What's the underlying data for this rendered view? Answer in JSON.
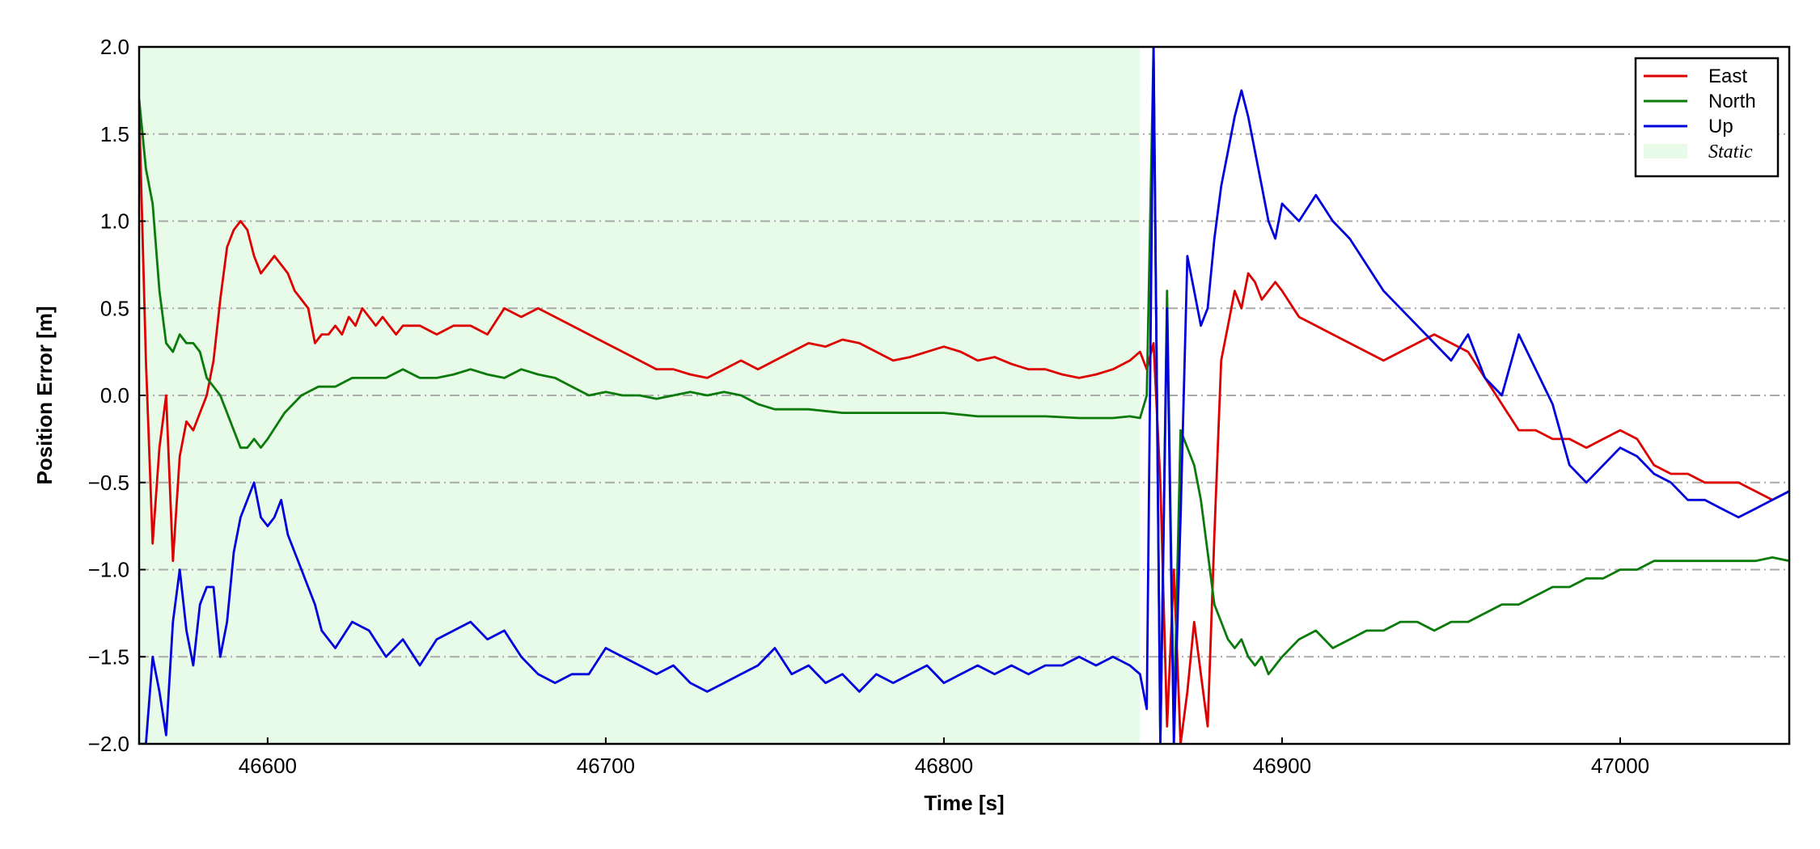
{
  "chart_data": {
    "type": "line",
    "xlabel": "Time [s]",
    "ylabel": "Position Error [m]",
    "xlim": [
      46562,
      47050
    ],
    "ylim": [
      -2.0,
      2.0
    ],
    "xticks": [
      46600,
      46700,
      46800,
      46900,
      47000
    ],
    "xtick_labels": [
      "46600",
      "46700",
      "46800",
      "46900",
      "47000"
    ],
    "yticks": [
      2.0,
      1.5,
      1.0,
      0.5,
      0.0,
      -0.5,
      -1.0,
      -1.5,
      -2.0
    ],
    "ytick_labels": [
      "2.0",
      "1.5",
      "1.0",
      "0.5",
      "0.0",
      "−0.5",
      "−1.0",
      "−1.5",
      "−2.0"
    ],
    "grid": "horizontal dash-dot",
    "legend_position": "top-right",
    "shaded_region": {
      "label": "Static",
      "x": [
        46562,
        46858
      ],
      "color": "#e8fbe8"
    },
    "series": [
      {
        "name": "East",
        "color": "#dd0000",
        "x": [
          46562,
          46564,
          46566,
          46568,
          46570,
          46572,
          46574,
          46576,
          46578,
          46580,
          46582,
          46584,
          46586,
          46588,
          46590,
          46592,
          46594,
          46596,
          46598,
          46600,
          46602,
          46604,
          46606,
          46608,
          46610,
          46612,
          46614,
          46616,
          46618,
          46620,
          46622,
          46624,
          46626,
          46628,
          46630,
          46632,
          46634,
          46636,
          46638,
          46640,
          46645,
          46650,
          46655,
          46660,
          46665,
          46670,
          46675,
          46680,
          46685,
          46690,
          46695,
          46700,
          46705,
          46710,
          46715,
          46720,
          46725,
          46730,
          46735,
          46740,
          46745,
          46750,
          46755,
          46760,
          46765,
          46770,
          46775,
          46780,
          46785,
          46790,
          46795,
          46800,
          46805,
          46810,
          46815,
          46820,
          46825,
          46830,
          46835,
          46840,
          46845,
          46850,
          46855,
          46858,
          46860,
          46862,
          46864,
          46866,
          46868,
          46870,
          46872,
          46874,
          46876,
          46878,
          46880,
          46882,
          46884,
          46886,
          46888,
          46890,
          46892,
          46894,
          46896,
          46898,
          46900,
          46905,
          46910,
          46915,
          46920,
          46925,
          46930,
          46935,
          46940,
          46945,
          46950,
          46955,
          46960,
          46965,
          46970,
          46975,
          46980,
          46985,
          46990,
          46995,
          47000,
          47005,
          47010,
          47015,
          47020,
          47025,
          47030,
          47035,
          47040,
          47045,
          47050
        ],
        "y": [
          1.65,
          0.2,
          -0.85,
          -0.3,
          0.0,
          -0.95,
          -0.35,
          -0.15,
          -0.2,
          -0.1,
          0.0,
          0.2,
          0.55,
          0.85,
          0.95,
          1.0,
          0.95,
          0.8,
          0.7,
          0.75,
          0.8,
          0.75,
          0.7,
          0.6,
          0.55,
          0.5,
          0.3,
          0.35,
          0.35,
          0.4,
          0.35,
          0.45,
          0.4,
          0.5,
          0.45,
          0.4,
          0.45,
          0.4,
          0.35,
          0.4,
          0.4,
          0.35,
          0.4,
          0.4,
          0.35,
          0.5,
          0.45,
          0.5,
          0.45,
          0.4,
          0.35,
          0.3,
          0.25,
          0.2,
          0.15,
          0.15,
          0.12,
          0.1,
          0.15,
          0.2,
          0.15,
          0.2,
          0.25,
          0.3,
          0.28,
          0.32,
          0.3,
          0.25,
          0.2,
          0.22,
          0.25,
          0.28,
          0.25,
          0.2,
          0.22,
          0.18,
          0.15,
          0.15,
          0.12,
          0.1,
          0.12,
          0.15,
          0.2,
          0.25,
          0.15,
          0.3,
          -0.5,
          -1.9,
          -1.0,
          -2.0,
          -1.7,
          -1.3,
          -1.6,
          -1.9,
          -0.8,
          0.2,
          0.4,
          0.6,
          0.5,
          0.7,
          0.65,
          0.55,
          0.6,
          0.65,
          0.6,
          0.45,
          0.4,
          0.35,
          0.3,
          0.25,
          0.2,
          0.25,
          0.3,
          0.35,
          0.3,
          0.25,
          0.1,
          -0.05,
          -0.2,
          -0.2,
          -0.25,
          -0.25,
          -0.3,
          -0.25,
          -0.2,
          -0.25,
          -0.4,
          -0.45,
          -0.45,
          -0.5,
          -0.5,
          -0.5,
          -0.55,
          -0.6,
          -0.55
        ]
      },
      {
        "name": "North",
        "color": "#0a7a0a",
        "x": [
          46562,
          46564,
          46566,
          46568,
          46570,
          46572,
          46574,
          46576,
          46578,
          46580,
          46582,
          46584,
          46586,
          46588,
          46590,
          46592,
          46594,
          46596,
          46598,
          46600,
          46605,
          46610,
          46615,
          46620,
          46625,
          46630,
          46635,
          46640,
          46645,
          46650,
          46655,
          46660,
          46665,
          46670,
          46675,
          46680,
          46685,
          46690,
          46695,
          46700,
          46705,
          46710,
          46715,
          46720,
          46725,
          46730,
          46735,
          46740,
          46745,
          46750,
          46760,
          46770,
          46780,
          46790,
          46800,
          46810,
          46820,
          46830,
          46840,
          46850,
          46855,
          46858,
          46860,
          46862,
          46864,
          46866,
          46868,
          46870,
          46872,
          46874,
          46876,
          46878,
          46880,
          46882,
          46884,
          46886,
          46888,
          46890,
          46892,
          46894,
          46896,
          46898,
          46900,
          46905,
          46910,
          46915,
          46920,
          46925,
          46930,
          46935,
          46940,
          46945,
          46950,
          46955,
          46960,
          46965,
          46970,
          46975,
          46980,
          46985,
          46990,
          46995,
          47000,
          47005,
          47010,
          47015,
          47020,
          47025,
          47030,
          47035,
          47040,
          47045,
          47050
        ],
        "y": [
          1.7,
          1.3,
          1.1,
          0.6,
          0.3,
          0.25,
          0.35,
          0.3,
          0.3,
          0.25,
          0.1,
          0.05,
          0.0,
          -0.1,
          -0.2,
          -0.3,
          -0.3,
          -0.25,
          -0.3,
          -0.25,
          -0.1,
          0.0,
          0.05,
          0.05,
          0.1,
          0.1,
          0.1,
          0.15,
          0.1,
          0.1,
          0.12,
          0.15,
          0.12,
          0.1,
          0.15,
          0.12,
          0.1,
          0.05,
          0.0,
          0.02,
          0.0,
          0.0,
          -0.02,
          0.0,
          0.02,
          0.0,
          0.02,
          0.0,
          -0.05,
          -0.08,
          -0.08,
          -0.1,
          -0.1,
          -0.1,
          -0.1,
          -0.12,
          -0.12,
          -0.12,
          -0.13,
          -0.13,
          -0.12,
          -0.13,
          0.0,
          2.0,
          -2.0,
          0.6,
          -1.9,
          -0.2,
          -0.3,
          -0.4,
          -0.6,
          -0.9,
          -1.2,
          -1.3,
          -1.4,
          -1.45,
          -1.4,
          -1.5,
          -1.55,
          -1.5,
          -1.6,
          -1.55,
          -1.5,
          -1.4,
          -1.35,
          -1.45,
          -1.4,
          -1.35,
          -1.35,
          -1.3,
          -1.3,
          -1.35,
          -1.3,
          -1.3,
          -1.25,
          -1.2,
          -1.2,
          -1.15,
          -1.1,
          -1.1,
          -1.05,
          -1.05,
          -1.0,
          -1.0,
          -0.95,
          -0.95,
          -0.95,
          -0.95,
          -0.95,
          -0.95,
          -0.95,
          -0.93,
          -0.95
        ]
      },
      {
        "name": "Up",
        "color": "#0000dd",
        "x": [
          46562,
          46564,
          46566,
          46568,
          46570,
          46572,
          46574,
          46576,
          46578,
          46580,
          46582,
          46584,
          46586,
          46588,
          46590,
          46592,
          46594,
          46596,
          46598,
          46600,
          46602,
          46604,
          46606,
          46608,
          46610,
          46612,
          46614,
          46616,
          46618,
          46620,
          46625,
          46630,
          46635,
          46640,
          46645,
          46650,
          46655,
          46660,
          46665,
          46670,
          46675,
          46680,
          46685,
          46690,
          46695,
          46700,
          46705,
          46710,
          46715,
          46720,
          46725,
          46730,
          46735,
          46740,
          46745,
          46750,
          46755,
          46760,
          46765,
          46770,
          46775,
          46780,
          46785,
          46790,
          46795,
          46800,
          46805,
          46810,
          46815,
          46820,
          46825,
          46830,
          46835,
          46840,
          46845,
          46850,
          46855,
          46858,
          46860,
          46862,
          46864,
          46866,
          46868,
          46870,
          46872,
          46874,
          46876,
          46878,
          46880,
          46882,
          46884,
          46886,
          46888,
          46890,
          46892,
          46894,
          46896,
          46898,
          46900,
          46905,
          46910,
          46915,
          46920,
          46925,
          46930,
          46935,
          46940,
          46945,
          46950,
          46955,
          46960,
          46965,
          46970,
          46975,
          46980,
          46985,
          46990,
          46995,
          47000,
          47005,
          47010,
          47015,
          47020,
          47025,
          47030,
          47035,
          47040,
          47045,
          47050
        ],
        "y": [
          -2.0,
          -2.0,
          -1.5,
          -1.7,
          -1.95,
          -1.3,
          -1.0,
          -1.35,
          -1.55,
          -1.2,
          -1.1,
          -1.1,
          -1.5,
          -1.3,
          -0.9,
          -0.7,
          -0.6,
          -0.5,
          -0.7,
          -0.75,
          -0.7,
          -0.6,
          -0.8,
          -0.9,
          -1.0,
          -1.1,
          -1.2,
          -1.35,
          -1.4,
          -1.45,
          -1.3,
          -1.35,
          -1.5,
          -1.4,
          -1.55,
          -1.4,
          -1.35,
          -1.3,
          -1.4,
          -1.35,
          -1.5,
          -1.6,
          -1.65,
          -1.6,
          -1.6,
          -1.45,
          -1.5,
          -1.55,
          -1.6,
          -1.55,
          -1.65,
          -1.7,
          -1.65,
          -1.6,
          -1.55,
          -1.45,
          -1.6,
          -1.55,
          -1.65,
          -1.6,
          -1.7,
          -1.6,
          -1.65,
          -1.6,
          -1.55,
          -1.65,
          -1.6,
          -1.55,
          -1.6,
          -1.55,
          -1.6,
          -1.55,
          -1.55,
          -1.5,
          -1.55,
          -1.5,
          -1.55,
          -1.6,
          -1.8,
          2.0,
          -2.0,
          0.5,
          -2.0,
          -0.7,
          0.8,
          0.6,
          0.4,
          0.5,
          0.9,
          1.2,
          1.4,
          1.6,
          1.75,
          1.6,
          1.4,
          1.2,
          1.0,
          0.9,
          1.1,
          1.0,
          1.15,
          1.0,
          0.9,
          0.75,
          0.6,
          0.5,
          0.4,
          0.3,
          0.2,
          0.35,
          0.1,
          0.0,
          0.35,
          0.15,
          -0.05,
          -0.4,
          -0.5,
          -0.4,
          -0.3,
          -0.35,
          -0.45,
          -0.5,
          -0.6,
          -0.6,
          -0.65,
          -0.7,
          -0.65,
          -0.6,
          -0.55
        ]
      }
    ]
  }
}
